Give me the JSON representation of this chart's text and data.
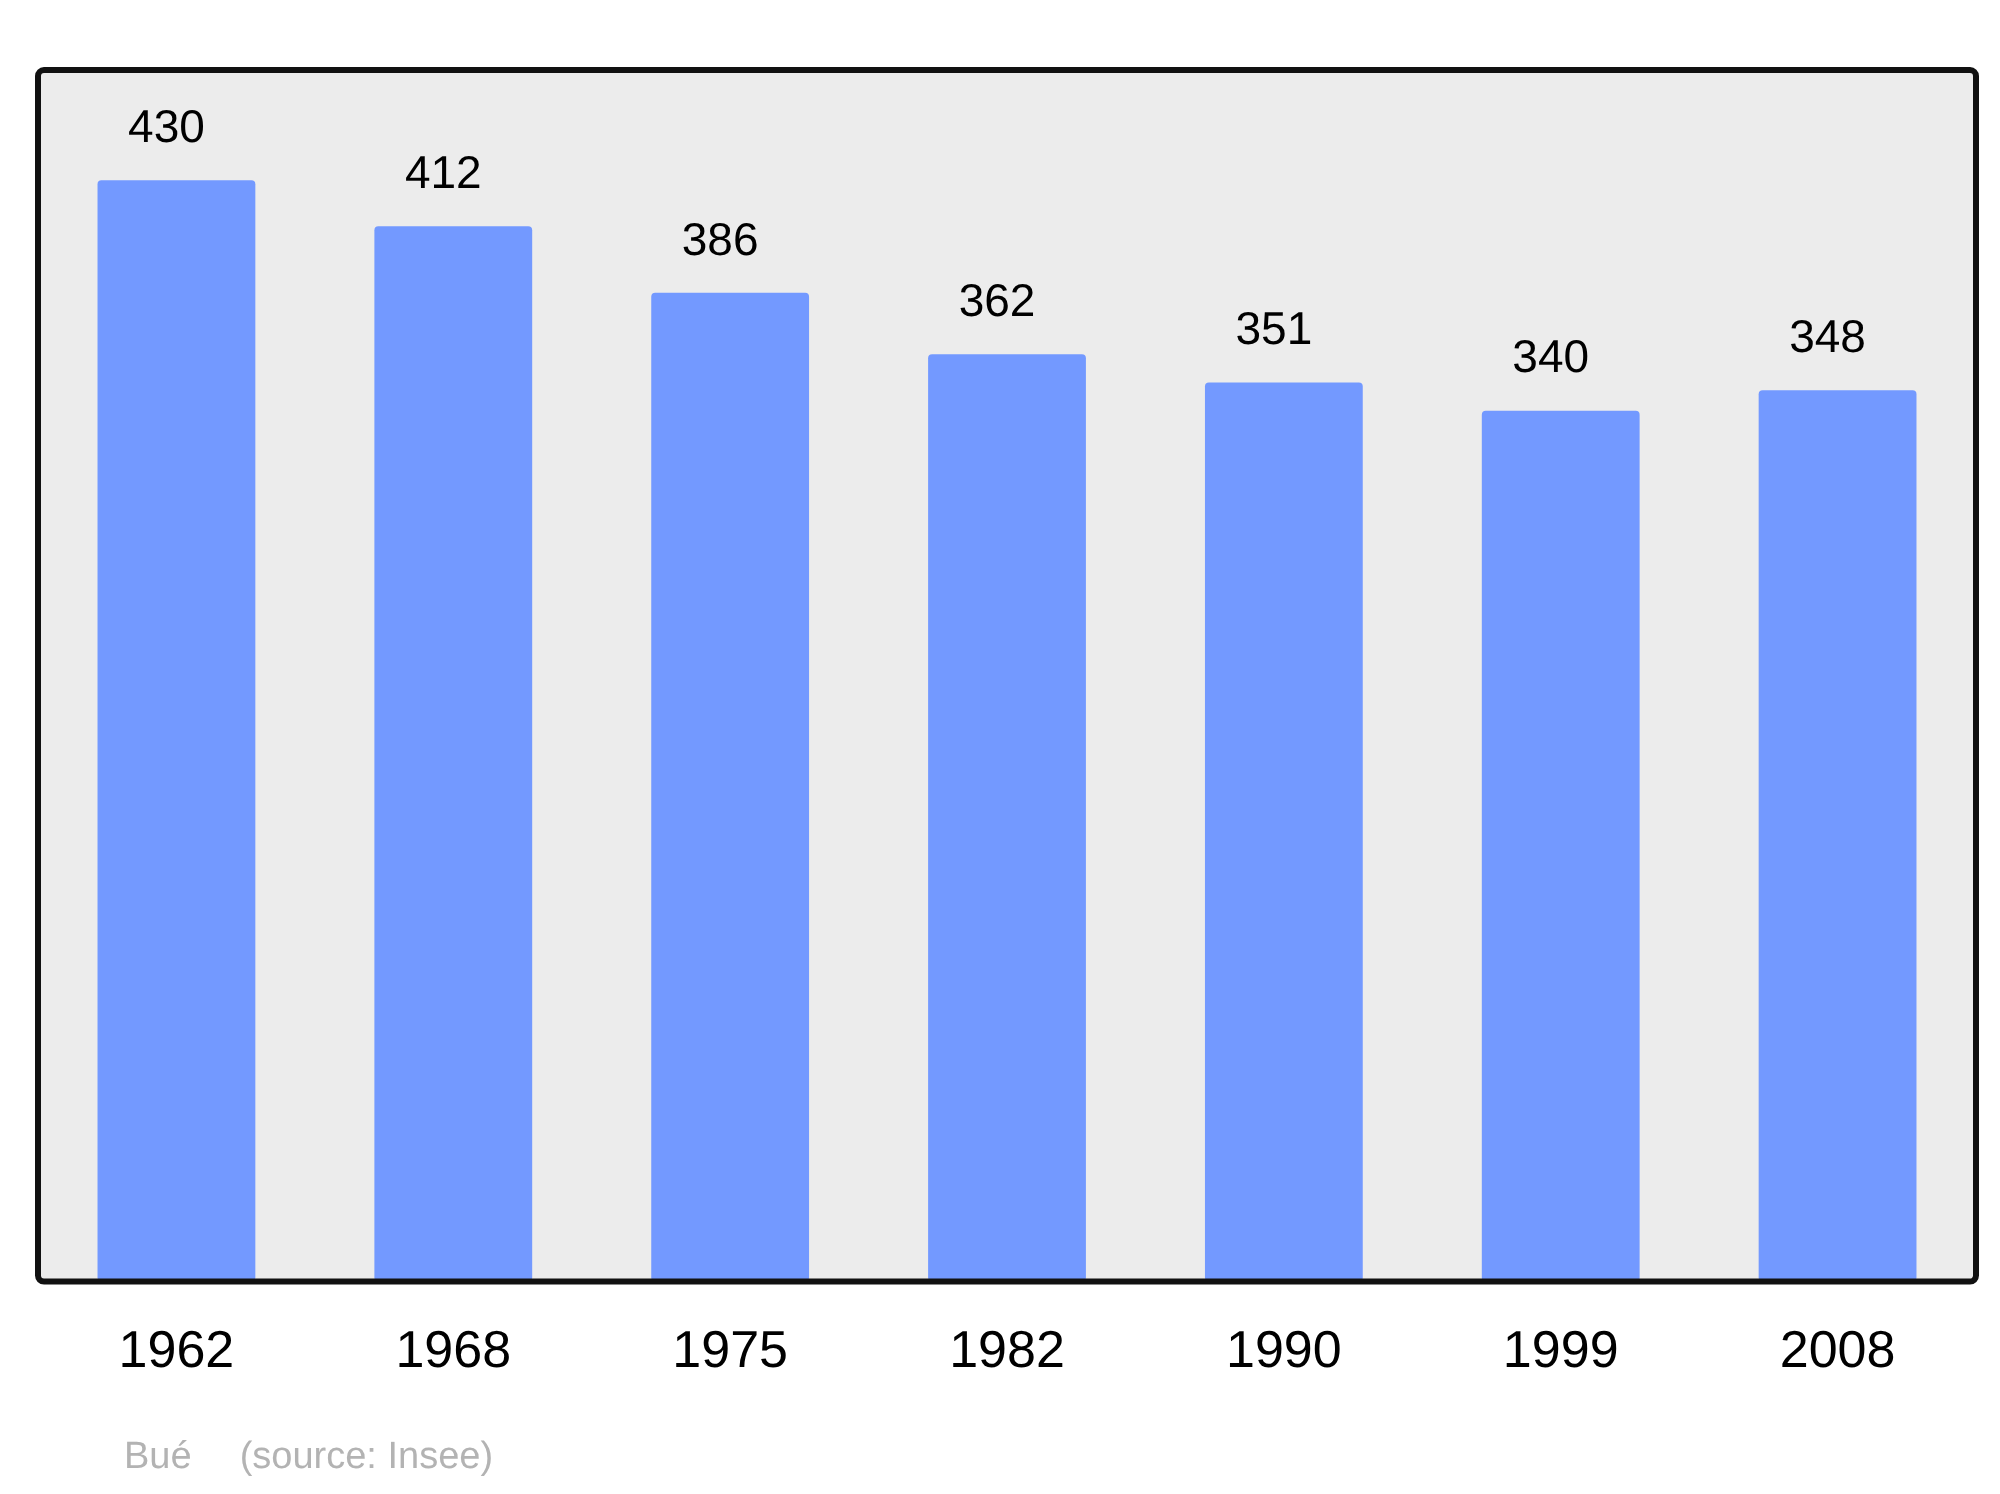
{
  "chart_data": {
    "type": "bar",
    "categories": [
      "1962",
      "1968",
      "1975",
      "1982",
      "1990",
      "1999",
      "2008"
    ],
    "values": [
      430,
      412,
      386,
      362,
      351,
      340,
      348
    ],
    "color": "#7399ff",
    "data_labels": true,
    "relative": false,
    "grid": false,
    "legend": false,
    "annotations": [
      "Bué",
      "(source: Insee)"
    ]
  }
}
